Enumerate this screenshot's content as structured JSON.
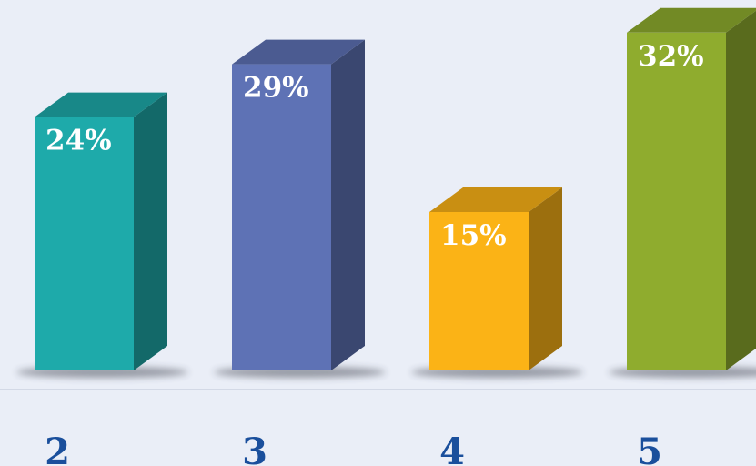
{
  "chart_data": {
    "type": "bar",
    "categories": [
      "2",
      "3",
      "4",
      "5"
    ],
    "values": [
      24,
      29,
      15,
      32
    ],
    "value_labels": [
      "24%",
      "29%",
      "15%",
      "32%"
    ],
    "colors": [
      "#1eaaaa",
      "#5e72b5",
      "#fbb316",
      "#8fac2e"
    ]
  }
}
